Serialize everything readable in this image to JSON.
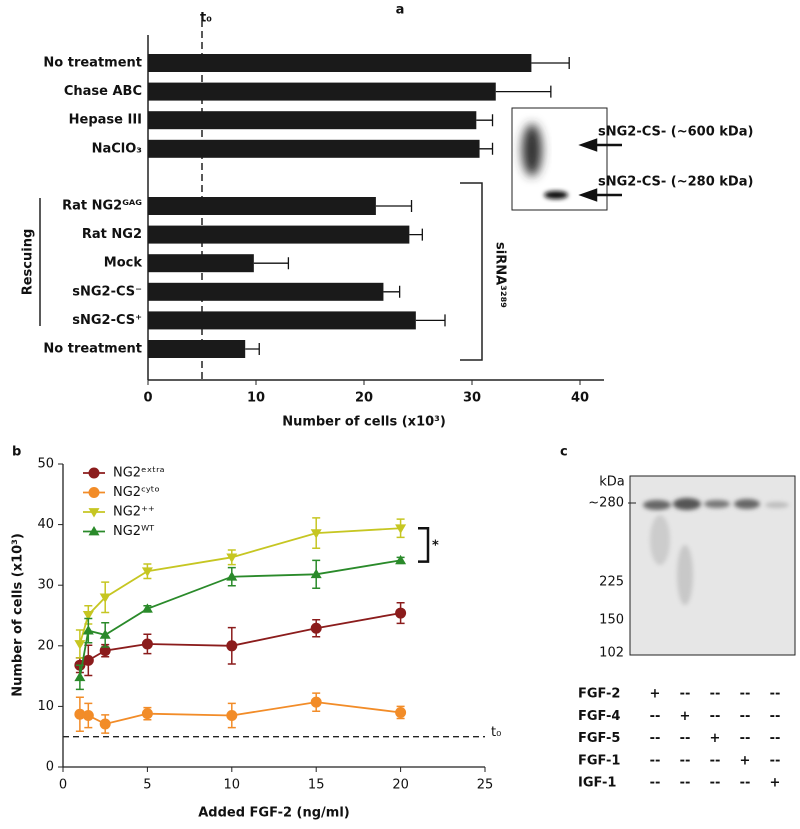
{
  "chart_data": [
    {
      "panel": "a",
      "type": "barh",
      "xlabel": "Number of cells (x10³)",
      "categories": [
        "No treatment",
        "Chase ABC",
        "Hepase III",
        "NaClO₃",
        null,
        "Rat NG2ᴳᴬᴳ",
        "Rat NG2",
        "Mock",
        "sNG2-CS⁻",
        "sNG2-CS⁺",
        "No treatment"
      ],
      "values": [
        35.5,
        32.2,
        30.4,
        30.7,
        null,
        21.1,
        24.2,
        9.8,
        21.8,
        24.8,
        9.0
      ],
      "errors": [
        3.5,
        5.1,
        1.5,
        1.2,
        null,
        3.3,
        1.2,
        3.2,
        1.5,
        2.7,
        1.3
      ],
      "error_bars": "upper",
      "color": "#1a1a1a",
      "xlim": [
        0,
        42
      ],
      "xticks": [
        0,
        10,
        20,
        30,
        40
      ],
      "reference_line": {
        "x": 5,
        "label": "t₀"
      },
      "groups": [
        "Rescuing",
        "siRNA³²⁸⁹"
      ],
      "inset": {
        "labels": [
          "sNG2-CS- (~600 kDa)",
          "sNG2-CS- (~280 kDa)"
        ]
      }
    },
    {
      "panel": "b",
      "type": "line",
      "xlabel": "Added FGF-2 (ng/ml)",
      "ylabel": "Number of cells (x10³)",
      "x": [
        1,
        1.5,
        2.5,
        5,
        10,
        15,
        20
      ],
      "series": [
        {
          "name": "NG2ᵉˣᵗʳᵃ",
          "color": "#8b1c1c",
          "marker": "circle",
          "values": [
            16.8,
            17.6,
            19.2,
            20.3,
            20.0,
            22.9,
            25.4
          ],
          "errors": [
            1.2,
            2.5,
            1.0,
            1.6,
            3.0,
            1.4,
            1.7
          ]
        },
        {
          "name": "NG2ᶜʸᵗᵒ",
          "color": "#f28c28",
          "marker": "circle",
          "values": [
            8.7,
            8.5,
            7.1,
            8.8,
            8.5,
            10.7,
            9.0
          ],
          "errors": [
            2.8,
            2.0,
            1.5,
            1.0,
            2.0,
            1.5,
            1.0
          ]
        },
        {
          "name": "NG2⁺⁺",
          "color": "#c6c622",
          "marker": "triangle-down",
          "values": [
            20.3,
            25.1,
            28.0,
            32.3,
            34.6,
            38.6,
            39.4
          ],
          "errors": [
            2.3,
            1.5,
            2.5,
            1.2,
            1.2,
            2.5,
            1.5
          ]
        },
        {
          "name": "NG2ᵂᵀ",
          "color": "#2a8a2a",
          "marker": "triangle-up",
          "values": [
            14.8,
            22.5,
            21.8,
            26.1,
            31.4,
            31.8,
            34.1
          ],
          "errors": [
            2.0,
            2.0,
            2.0,
            0.5,
            1.5,
            2.3,
            0.5
          ]
        }
      ],
      "xlim": [
        0,
        25
      ],
      "ylim": [
        0,
        50
      ],
      "xticks": [
        0,
        5,
        10,
        15,
        20,
        25
      ],
      "yticks": [
        0,
        10,
        20,
        30,
        40,
        50
      ],
      "reference_line": {
        "y": 5,
        "label": "t₀"
      },
      "annotation": "*",
      "legend": "upper left"
    }
  ],
  "blot": {
    "panel": "c",
    "unit_label": "kDa",
    "markers": [
      "~280",
      "225",
      "150",
      "102"
    ],
    "rows": [
      {
        "label": "FGF-2",
        "cells": [
          "+",
          "--",
          "--",
          "--",
          "--"
        ]
      },
      {
        "label": "FGF-4",
        "cells": [
          "--",
          "+",
          "--",
          "--",
          "--"
        ]
      },
      {
        "label": "FGF-5",
        "cells": [
          "--",
          "--",
          "+",
          "--",
          "--"
        ]
      },
      {
        "label": "FGF-1",
        "cells": [
          "--",
          "--",
          "--",
          "+",
          "--"
        ]
      },
      {
        "label": "IGF-1",
        "cells": [
          "--",
          "--",
          "--",
          "--",
          "+"
        ]
      }
    ]
  }
}
